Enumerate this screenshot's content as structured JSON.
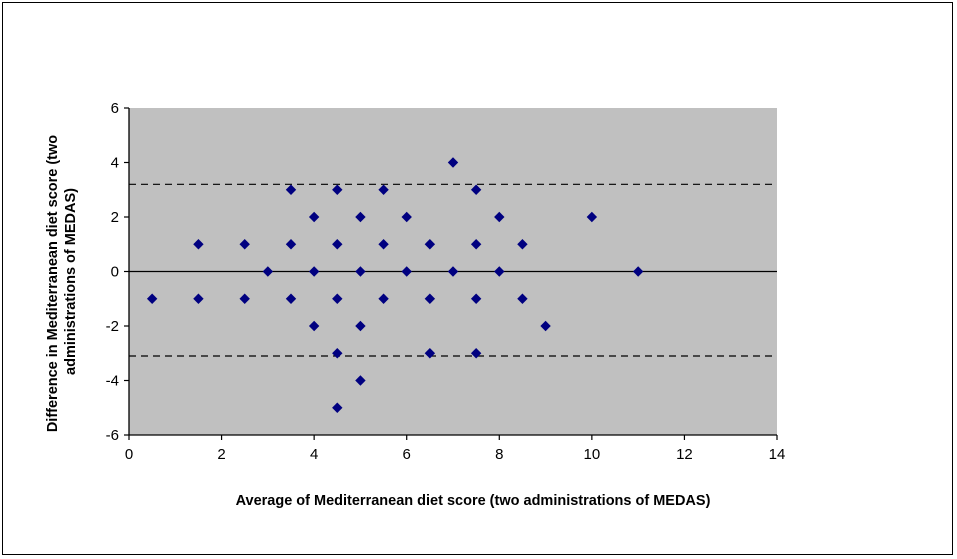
{
  "chart_data": {
    "type": "scatter",
    "xlabel": "Average of Mediterranean diet score (two administrations of MEDAS)",
    "ylabel_lines": [
      "Difference in Mediterranean  diet score (two",
      "administrations of MEDAS)"
    ],
    "xlim": [
      0,
      14
    ],
    "ylim": [
      -6,
      6
    ],
    "x_ticks": [
      0,
      2,
      4,
      6,
      8,
      10,
      12,
      14
    ],
    "y_ticks": [
      -6,
      -4,
      -2,
      0,
      2,
      4,
      6
    ],
    "x_tick_labels": [
      "0",
      "2",
      "4",
      "6",
      "8",
      "10",
      "12",
      "14"
    ],
    "y_tick_labels": [
      "-6",
      "-4",
      "-2",
      "0",
      "2",
      "4",
      "6"
    ],
    "plot_background": "#c0c0c0",
    "marker_color": "#000080",
    "marker": "diamond",
    "grid": false,
    "legend": "none",
    "mean_line": 0,
    "limits_of_agreement": [
      3.2,
      -3.1
    ],
    "points": [
      [
        0.5,
        -1
      ],
      [
        1.5,
        1
      ],
      [
        1.5,
        -1
      ],
      [
        2.5,
        1
      ],
      [
        2.5,
        -1
      ],
      [
        3,
        0
      ],
      [
        3.5,
        3
      ],
      [
        3.5,
        1
      ],
      [
        3.5,
        -1
      ],
      [
        4,
        2
      ],
      [
        4,
        0
      ],
      [
        4,
        -2
      ],
      [
        4.5,
        3
      ],
      [
        4.5,
        1
      ],
      [
        4.5,
        -1
      ],
      [
        4.5,
        -3
      ],
      [
        4.5,
        -5
      ],
      [
        5,
        2
      ],
      [
        5,
        0
      ],
      [
        5,
        -2
      ],
      [
        5,
        -4
      ],
      [
        5.5,
        3
      ],
      [
        5.5,
        1
      ],
      [
        5.5,
        -1
      ],
      [
        6,
        2
      ],
      [
        6,
        0
      ],
      [
        6.5,
        1
      ],
      [
        6.5,
        -1
      ],
      [
        6.5,
        -3
      ],
      [
        7,
        4
      ],
      [
        7,
        0
      ],
      [
        7.5,
        3
      ],
      [
        7.5,
        1
      ],
      [
        7.5,
        -1
      ],
      [
        7.5,
        -3
      ],
      [
        8,
        2
      ],
      [
        8,
        0
      ],
      [
        8.5,
        1
      ],
      [
        8.5,
        -1
      ],
      [
        9,
        -2
      ],
      [
        10,
        2
      ],
      [
        11,
        0
      ]
    ]
  }
}
